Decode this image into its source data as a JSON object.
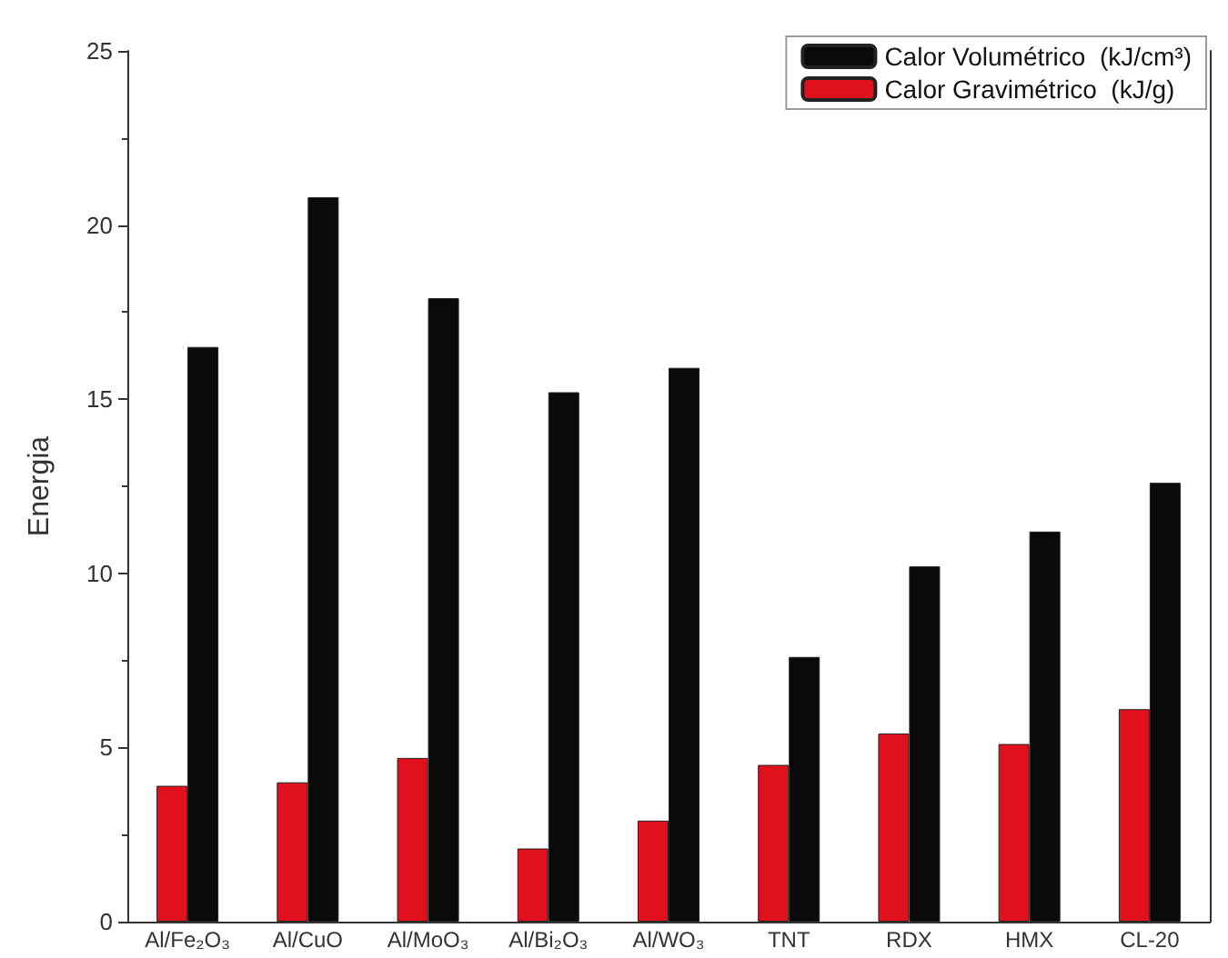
{
  "chart_data": {
    "type": "bar",
    "ylabel": "Energia",
    "categories": [
      "Al/Fe₂O₃",
      "Al/CuO",
      "Al/MoO₃",
      "Al/Bi₂O₃",
      "Al/WO₃",
      "TNT",
      "RDX",
      "HMX",
      "CL-20"
    ],
    "series": [
      {
        "name": "Calor Volumétrico  (kJ/cm³)",
        "color": "#0a0a0a",
        "values": [
          16.5,
          20.8,
          17.9,
          15.2,
          15.9,
          7.6,
          10.2,
          11.2,
          12.6
        ]
      },
      {
        "name": "Calor Gravimétrico  (kJ/g)",
        "color": "#e0101c",
        "values": [
          3.9,
          4.0,
          4.7,
          2.1,
          2.9,
          4.5,
          5.4,
          5.1,
          6.1
        ]
      }
    ],
    "ylim": [
      0,
      25
    ],
    "yticks": [
      0,
      5,
      10,
      15,
      20,
      25
    ],
    "grid": false,
    "legend": "top right"
  }
}
